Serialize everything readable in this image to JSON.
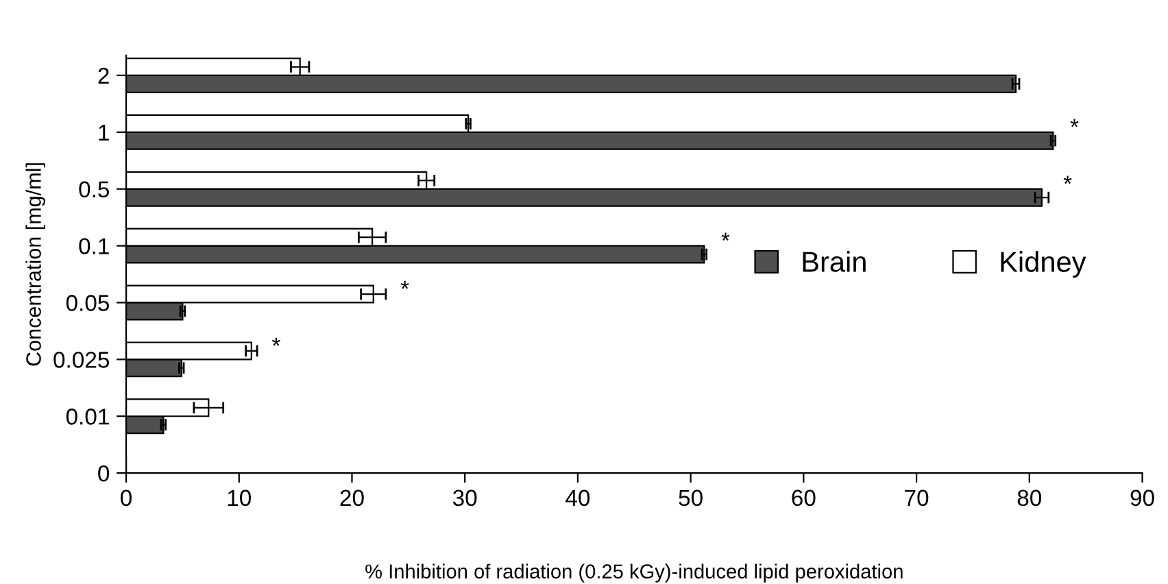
{
  "chart_data": {
    "type": "bar",
    "orientation": "horizontal",
    "categories": [
      "2",
      "1",
      "0.5",
      "0.1",
      "0.05",
      "0.025",
      "0.01",
      "0"
    ],
    "series": [
      {
        "name": "Brain",
        "color": "#505050",
        "values": [
          78.8,
          82.1,
          81.1,
          51.2,
          5.0,
          4.9,
          3.3,
          null
        ],
        "errors": [
          0.3,
          0.2,
          0.6,
          0.2,
          0.2,
          0.2,
          0.2,
          null
        ]
      },
      {
        "name": "Kidney",
        "color": "#ffffff",
        "values": [
          15.4,
          30.3,
          26.6,
          21.8,
          21.9,
          11.1,
          7.3,
          null
        ],
        "errors": [
          0.8,
          0.2,
          0.7,
          1.2,
          1.1,
          0.5,
          1.3,
          null
        ]
      }
    ],
    "xlim": [
      0,
      90
    ],
    "xticks": [
      0,
      10,
      20,
      30,
      40,
      50,
      60,
      70,
      80,
      90
    ],
    "xlabel": "% Inhibition of radiation (0.25 kGy)-induced lipid peroxidation",
    "ylabel": "Concentration [mg/ml]",
    "annotations": [
      {
        "text": "*",
        "x": 82.1,
        "y": "1"
      },
      {
        "text": "*",
        "x": 81.1,
        "y": "0.5"
      },
      {
        "text": "*",
        "x": 51.2,
        "y": "0.1"
      },
      {
        "text": "*",
        "x": 21.9,
        "y": "0.05"
      },
      {
        "text": "*",
        "x": 11.1,
        "y": "0.025"
      }
    ],
    "legend": "center right",
    "grid": false
  }
}
